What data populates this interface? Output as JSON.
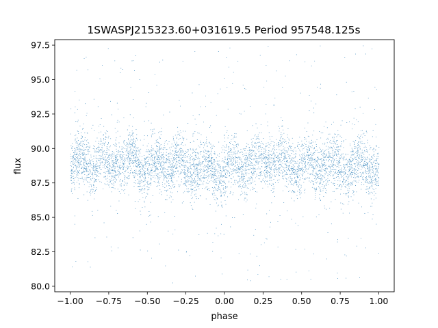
{
  "chart_data": {
    "type": "scatter",
    "title": "1SWASPJ215323.60+031619.5 Period 957548.125s",
    "xlabel": "phase",
    "ylabel": "flux",
    "xlim": [
      -1.1,
      1.1
    ],
    "ylim": [
      79.6,
      97.9
    ],
    "xticks": [
      -1.0,
      -0.75,
      -0.5,
      -0.25,
      0.0,
      0.25,
      0.5,
      0.75,
      1.0
    ],
    "xtick_labels": [
      "−1.00",
      "−0.75",
      "−0.50",
      "−0.25",
      "0.00",
      "0.25",
      "0.50",
      "0.75",
      "1.00"
    ],
    "yticks": [
      80.0,
      82.5,
      85.0,
      87.5,
      90.0,
      92.5,
      95.0,
      97.5
    ],
    "ytick_labels": [
      "80.0",
      "82.5",
      "85.0",
      "87.5",
      "90.0",
      "92.5",
      "95.0",
      "97.5"
    ],
    "series_color": "#1f77b4",
    "grid": false,
    "legend": "none",
    "series": [
      {
        "x_range": [
          -1.0,
          1.0
        ],
        "flux_center": 88.8,
        "flux_core_range": [
          86.5,
          91.5
        ],
        "flux_outlier_range": [
          80.2,
          97.5
        ],
        "x": [
          -1.0,
          -0.95,
          -0.9,
          -0.85,
          -0.8,
          -0.75,
          -0.7,
          -0.65,
          -0.6,
          -0.55,
          -0.5,
          -0.45,
          -0.4,
          -0.35,
          -0.3,
          -0.25,
          -0.2,
          -0.15,
          -0.1,
          -0.05,
          0.0,
          0.05,
          0.1,
          0.15,
          0.2,
          0.25,
          0.3,
          0.35,
          0.4,
          0.45,
          0.5,
          0.55,
          0.6,
          0.65,
          0.7,
          0.75,
          0.8,
          0.85,
          0.9,
          0.95,
          1.0
        ],
        "y": [
          88.6,
          88.9,
          89.4,
          88.7,
          89.2,
          88.5,
          89.8,
          88.4,
          89.6,
          88.9,
          88.6,
          88.8,
          89.1,
          88.7,
          89.0,
          88.5,
          88.9,
          88.4,
          88.6,
          88.3,
          88.2,
          88.8,
          88.9,
          89.0,
          88.7,
          89.3,
          89.4,
          89.1,
          88.8,
          88.9,
          88.6,
          89.0,
          88.7,
          88.9,
          88.8,
          89.1,
          88.7,
          88.6,
          88.9,
          88.8,
          88.7
        ]
      }
    ]
  }
}
